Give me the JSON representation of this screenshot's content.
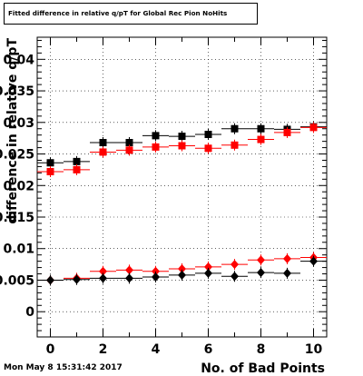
{
  "chart_data": {
    "type": "scatter",
    "title": "Fitted difference in relative q/pT for Global Rec Pion NoHits",
    "xlabel": "No. of Bad Points",
    "ylabel": "difference in relative q/pT",
    "xlim": [
      -0.5,
      10.5
    ],
    "ylim": [
      -0.004,
      0.0435
    ],
    "xticks": [
      0,
      2,
      4,
      6,
      8,
      10
    ],
    "xtick_labels": [
      "0",
      "2",
      "4",
      "6",
      "8",
      "10"
    ],
    "yticks": [
      0,
      0.005,
      0.01,
      0.015,
      0.02,
      0.025,
      0.03,
      0.035,
      0.04
    ],
    "ytick_labels": [
      "0",
      "0.005",
      "0.01",
      "0.015",
      "0.02",
      "0.025",
      "0.03",
      "0.035",
      "0.04"
    ],
    "grid": true,
    "x": [
      0,
      1,
      2,
      3,
      4,
      5,
      6,
      7,
      8,
      9,
      10
    ],
    "series": [
      {
        "marker": "square",
        "color": "#000000",
        "values": [
          0.0236,
          0.0238,
          0.0268,
          0.0268,
          0.0279,
          0.0278,
          0.0281,
          0.029,
          0.029,
          0.0289,
          0.0293
        ]
      },
      {
        "marker": "square",
        "color": "#ff0000",
        "values": [
          0.0222,
          0.0225,
          0.0253,
          0.0256,
          0.0261,
          0.0263,
          0.0259,
          0.0264,
          0.0273,
          0.0284,
          0.0292
        ]
      },
      {
        "marker": "diamond",
        "color": "#ff0000",
        "values": [
          0.005,
          0.0053,
          0.0064,
          0.0066,
          0.0064,
          0.0068,
          0.0071,
          0.0075,
          0.0082,
          0.0084,
          0.0086
        ]
      },
      {
        "marker": "diamond",
        "color": "#000000",
        "values": [
          0.005,
          0.0051,
          0.0053,
          0.0053,
          0.0055,
          0.0058,
          0.0061,
          0.0056,
          0.0062,
          0.0061,
          0.008
        ]
      }
    ]
  },
  "footer": {
    "timestamp": "Mon May  8 15:31:42 2017"
  }
}
